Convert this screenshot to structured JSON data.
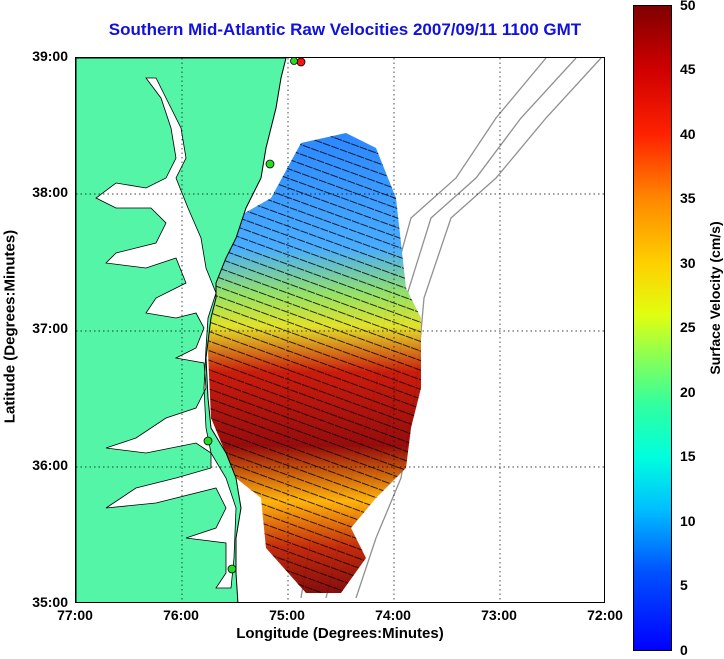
{
  "title": "Southern Mid-Atlantic Raw Velocities 2007/09/11 1100 GMT",
  "xlabel": "Longitude (Degrees:Minutes)",
  "ylabel": "Latitude (Degrees:Minutes)",
  "colorbar_label": "Surface Velocity (cm/s)",
  "x_ticks": [
    "77:00",
    "76:00",
    "75:00",
    "74:00",
    "73:00",
    "72:00"
  ],
  "y_ticks": [
    "39:00",
    "38:00",
    "37:00",
    "36:00",
    "35:00"
  ],
  "colorbar_ticks": [
    "50",
    "45",
    "40",
    "35",
    "30",
    "25",
    "20",
    "15",
    "10",
    "5",
    "0"
  ],
  "colors": {
    "title": "#1010e0",
    "land": "#55f5a8",
    "coastline": "#000000",
    "bathymetry": "#909090",
    "station_marker": "#22dd22",
    "station_marker_active": "#ff1010"
  }
}
